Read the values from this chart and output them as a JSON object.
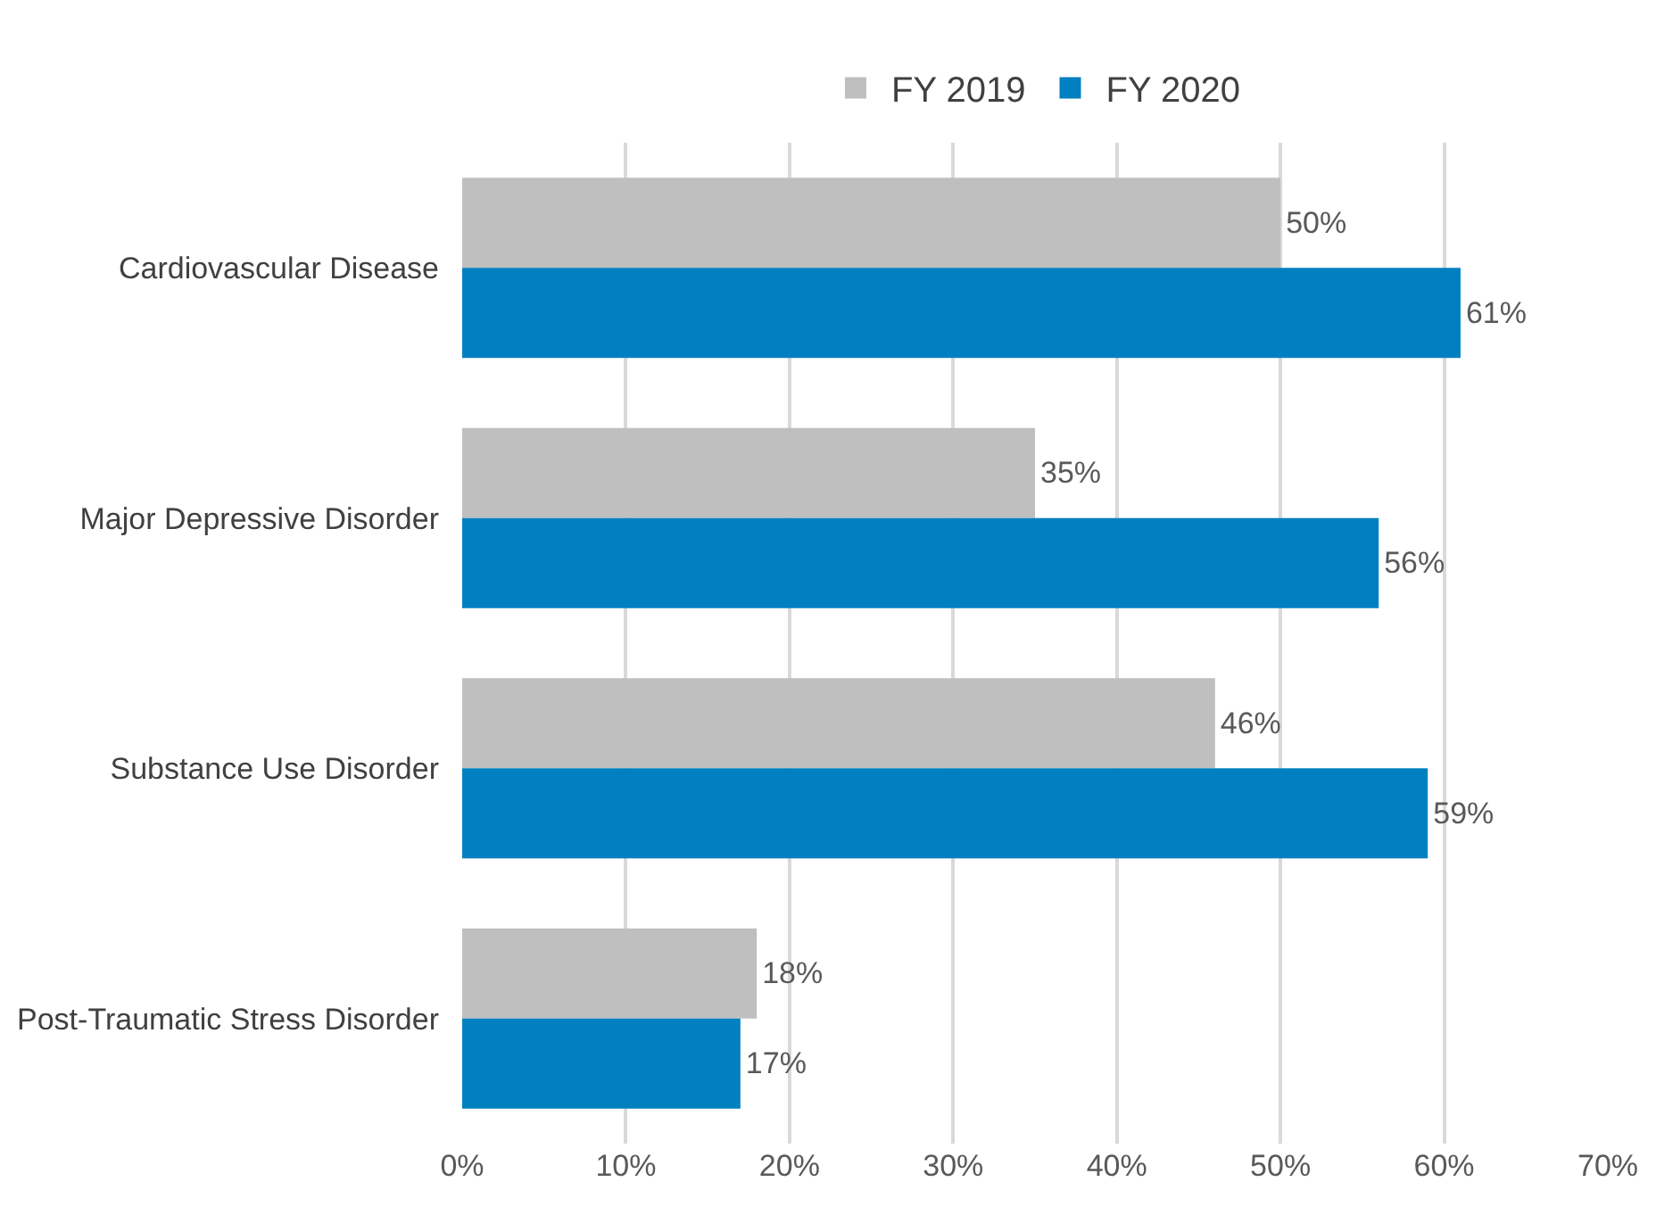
{
  "chart_data": {
    "type": "bar",
    "orientation": "horizontal",
    "categories": [
      "Cardiovascular Disease",
      "Major Depressive Disorder",
      "Substance Use Disorder",
      "Post-Traumatic Stress Disorder"
    ],
    "series": [
      {
        "name": "FY 2019",
        "color": "#bfbfbf",
        "values": [
          50,
          35,
          46,
          18
        ],
        "value_labels": [
          "50%",
          "35%",
          "46%",
          "18%"
        ]
      },
      {
        "name": "FY 2020",
        "color": "#0080c0",
        "values": [
          61,
          56,
          59,
          17
        ],
        "value_labels": [
          "61%",
          "56%",
          "59%",
          "17%"
        ]
      }
    ],
    "xlim": [
      0,
      70
    ],
    "xticks": [
      {
        "value": 0,
        "label": "0%"
      },
      {
        "value": 10,
        "label": "10%"
      },
      {
        "value": 20,
        "label": "20%"
      },
      {
        "value": 30,
        "label": "30%"
      },
      {
        "value": 40,
        "label": "40%"
      },
      {
        "value": 50,
        "label": "50%"
      },
      {
        "value": 60,
        "label": "60%"
      },
      {
        "value": 70,
        "label": "70%"
      }
    ],
    "grid": "x",
    "legend": "top"
  }
}
